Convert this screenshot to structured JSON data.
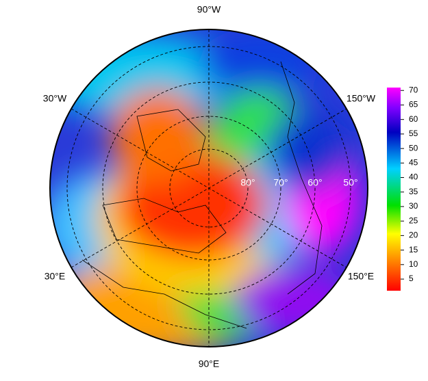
{
  "map": {
    "lon_labels": [
      "90°W",
      "150°W",
      "150°E",
      "90°E",
      "30°E",
      "30°W"
    ],
    "lat_labels": [
      "80°",
      "70°",
      "60°",
      "50°"
    ],
    "colorbar": {
      "lim": [
        1,
        71
      ],
      "ticks": [
        5,
        10,
        15,
        20,
        25,
        30,
        35,
        40,
        45,
        50,
        55,
        60,
        65,
        70
      ]
    }
  }
}
